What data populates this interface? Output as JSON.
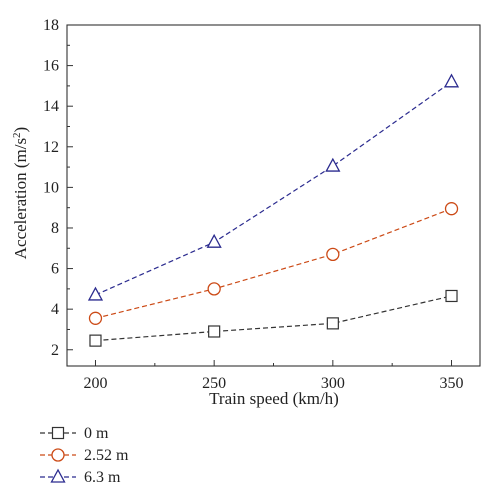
{
  "chart_data": {
    "type": "line",
    "title": "",
    "xlabel": "Train speed (km/h)",
    "ylabel_main": "Acceleration (m/s",
    "ylabel_sup": "2",
    "ylabel_close": ")",
    "x": [
      200,
      250,
      300,
      350
    ],
    "xticks": [
      "200",
      "250",
      "300",
      "350"
    ],
    "yticks": [
      "2",
      "4",
      "6",
      "8",
      "10",
      "12",
      "14",
      "16",
      "18"
    ],
    "xlim": [
      188,
      362
    ],
    "ylim": [
      1.2,
      18
    ],
    "grid": false,
    "legend_position": "below",
    "series": [
      {
        "name": "0 m",
        "marker": "square",
        "color": "#333333",
        "values": [
          2.45,
          2.9,
          3.3,
          4.65
        ]
      },
      {
        "name": "2.52 m",
        "marker": "circle",
        "color": "#cc4a16",
        "values": [
          3.55,
          5.0,
          6.7,
          8.95
        ]
      },
      {
        "name": "6.3 m",
        "marker": "triangle",
        "color": "#2b2b8f",
        "values": [
          4.7,
          7.3,
          11.05,
          15.2
        ]
      }
    ]
  }
}
